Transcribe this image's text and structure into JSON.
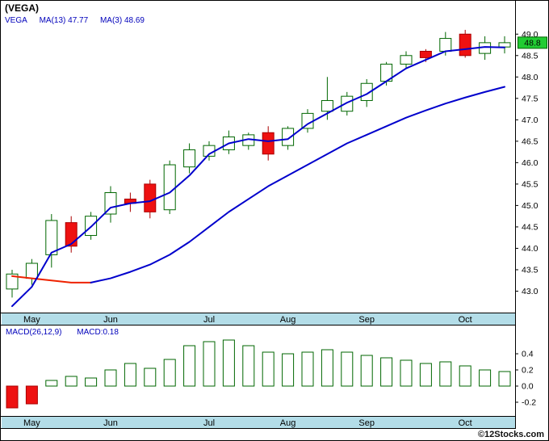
{
  "window": {
    "footer": "©12Stocks.com"
  },
  "colors": {
    "up": "#006600",
    "down_fill": "#ee1111",
    "down_stroke": "#aa0000",
    "ma_blue": "#0000cc",
    "ma_red": "#ee2200",
    "band": "#b3dde8",
    "legend_text": "#0000bb",
    "price_label_bg": "#22cc33",
    "price_label_border": "#006600"
  },
  "chart_data": [
    {
      "type": "candlestick",
      "title": "(VEGA)",
      "legend": [
        "VEGA",
        "MA(13) 47.77",
        "MA(3) 48.69"
      ],
      "x_labels": [
        {
          "label": "May",
          "index": 1
        },
        {
          "label": "Jun",
          "index": 5
        },
        {
          "label": "Jul",
          "index": 10
        },
        {
          "label": "Aug",
          "index": 14
        },
        {
          "label": "Sep",
          "index": 18
        },
        {
          "label": "Oct",
          "index": 23
        }
      ],
      "yticks": [
        49.0,
        48.5,
        48.0,
        47.5,
        47.0,
        46.5,
        46.0,
        45.5,
        45.0,
        44.5,
        44.0,
        43.5,
        43.0
      ],
      "ylim": [
        42.5,
        49.25
      ],
      "last_price": 48.8,
      "candles": [
        [
          43.05,
          43.5,
          42.85,
          43.4
        ],
        [
          43.3,
          43.75,
          43.15,
          43.65
        ],
        [
          43.85,
          44.8,
          43.55,
          44.65
        ],
        [
          44.6,
          44.75,
          43.9,
          44.05
        ],
        [
          44.3,
          44.85,
          44.2,
          44.75
        ],
        [
          44.8,
          45.45,
          44.6,
          45.3
        ],
        [
          45.15,
          45.3,
          44.85,
          45.05
        ],
        [
          45.5,
          45.6,
          44.7,
          44.85
        ],
        [
          44.9,
          46.05,
          44.8,
          45.95
        ],
        [
          45.9,
          46.45,
          45.75,
          46.3
        ],
        [
          46.15,
          46.5,
          46.05,
          46.4
        ],
        [
          46.3,
          46.75,
          46.2,
          46.6
        ],
        [
          46.4,
          46.7,
          46.3,
          46.65
        ],
        [
          46.7,
          46.85,
          46.05,
          46.2
        ],
        [
          46.4,
          46.85,
          46.3,
          46.8
        ],
        [
          46.8,
          47.25,
          46.7,
          47.15
        ],
        [
          47.2,
          48.0,
          47.0,
          47.45
        ],
        [
          47.2,
          47.65,
          47.1,
          47.55
        ],
        [
          47.45,
          47.95,
          47.3,
          47.85
        ],
        [
          47.9,
          48.35,
          47.8,
          48.3
        ],
        [
          48.3,
          48.6,
          48.2,
          48.5
        ],
        [
          48.6,
          48.65,
          48.35,
          48.45
        ],
        [
          48.6,
          49.05,
          48.5,
          48.9
        ],
        [
          49.0,
          49.1,
          48.45,
          48.5
        ],
        [
          48.55,
          48.95,
          48.4,
          48.8
        ],
        [
          48.7,
          48.95,
          48.55,
          48.8
        ]
      ],
      "series": [
        {
          "name": "MA(3)",
          "value": 48.69,
          "color": "#0000cc",
          "values": [
            42.65,
            43.1,
            43.9,
            44.1,
            44.5,
            44.95,
            45.05,
            45.1,
            45.3,
            45.7,
            46.2,
            46.45,
            46.55,
            46.5,
            46.55,
            46.9,
            47.15,
            47.4,
            47.6,
            47.9,
            48.2,
            48.4,
            48.6,
            48.65,
            48.7,
            48.69
          ]
        },
        {
          "name": "MA(13)",
          "value": 47.77,
          "color": "#0000cc",
          "falling_color": "#ee2200",
          "falling_until": 4,
          "values": [
            43.35,
            43.3,
            43.25,
            43.2,
            43.2,
            43.3,
            43.45,
            43.62,
            43.85,
            44.15,
            44.5,
            44.85,
            45.15,
            45.45,
            45.7,
            45.95,
            46.2,
            46.45,
            46.65,
            46.85,
            47.05,
            47.22,
            47.38,
            47.52,
            47.65,
            47.77
          ]
        }
      ]
    },
    {
      "type": "bar",
      "legend": [
        "MACD(26,12,9)",
        "MACD:0.18"
      ],
      "x_labels": [
        {
          "label": "May",
          "index": 1
        },
        {
          "label": "Jun",
          "index": 5
        },
        {
          "label": "Jul",
          "index": 10
        },
        {
          "label": "Aug",
          "index": 14
        },
        {
          "label": "Sep",
          "index": 18
        },
        {
          "label": "Oct",
          "index": 23
        }
      ],
      "yticks": [
        0.4,
        0.2,
        0.0,
        -0.2
      ],
      "ylim": [
        -0.37,
        0.73
      ],
      "values": [
        -0.27,
        -0.22,
        0.07,
        0.12,
        0.1,
        0.2,
        0.28,
        0.22,
        0.33,
        0.5,
        0.55,
        0.57,
        0.5,
        0.42,
        0.4,
        0.42,
        0.45,
        0.42,
        0.38,
        0.35,
        0.32,
        0.28,
        0.3,
        0.25,
        0.2,
        0.18
      ]
    }
  ]
}
